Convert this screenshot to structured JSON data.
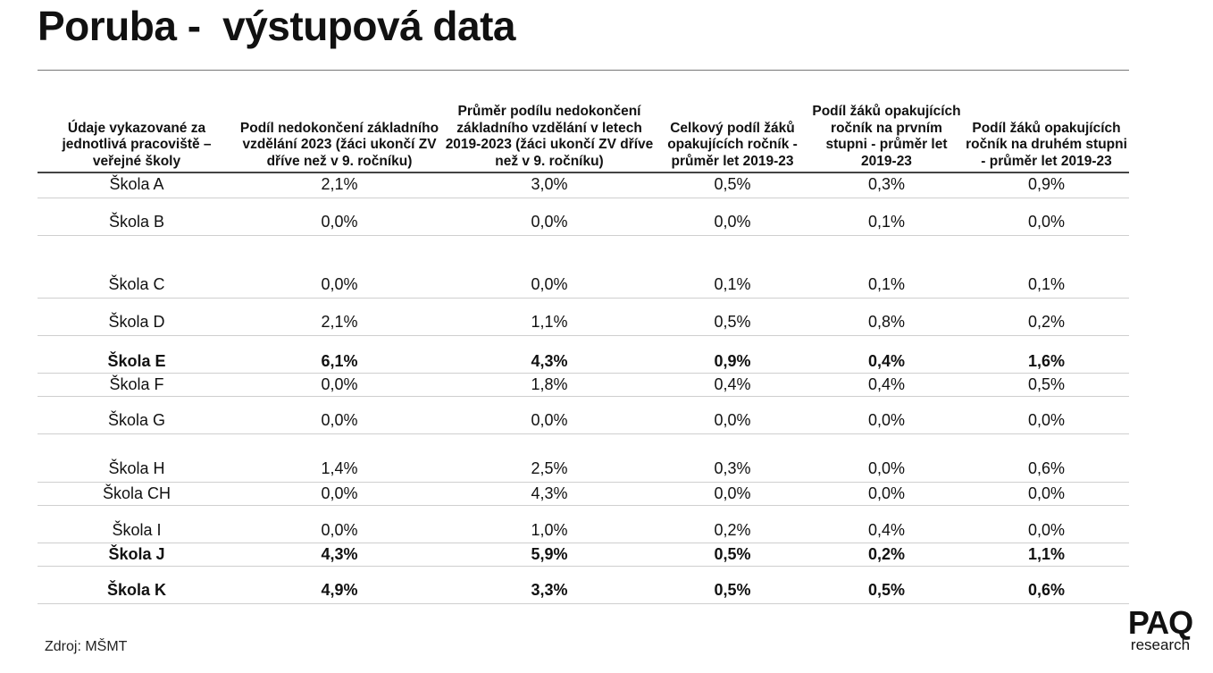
{
  "page": {
    "title": "Poruba -  výstupová data",
    "source": "Zdroj: MŠMT"
  },
  "logo": {
    "main": "PAQ",
    "sub": "research"
  },
  "table": {
    "headers": [
      "Údaje vykazované za jednotlivá pracoviště – veřejné školy",
      "Podíl nedokončení základního vzdělání 2023 (žáci ukončí ZV dříve než v 9. ročníku)",
      "Průměr podílu nedokončení základního vzdělání v letech 2019-2023 (žáci ukončí ZV dříve než v 9. ročníku)",
      "Celkový podíl žáků opakujících ročník - průměr let 2019-23",
      "Podíl žáků opakujících ročník na prvním stupni - průměr let 2019-23",
      "Podíl žáků opakujících ročník na druhém stupni - průměr let 2019-23"
    ],
    "rows": [
      {
        "cells": [
          "Škola A",
          "2,1%",
          "3,0%",
          "0,5%",
          "0,3%",
          "0,9%"
        ]
      },
      {
        "cells": [
          "Škola B",
          "0,0%",
          "0,0%",
          "0,0%",
          "0,1%",
          "0,0%"
        ]
      },
      {
        "cells": [
          "Škola C",
          "0,0%",
          "0,0%",
          "0,1%",
          "0,1%",
          "0,1%"
        ]
      },
      {
        "cells": [
          "Škola D",
          "2,1%",
          "1,1%",
          "0,5%",
          "0,8%",
          "0,2%"
        ]
      },
      {
        "cells": [
          "Škola E",
          "6,1%",
          "4,3%",
          "0,9%",
          "0,4%",
          "1,6%"
        ]
      },
      {
        "cells": [
          "Škola F",
          "0,0%",
          "1,8%",
          "0,4%",
          "0,4%",
          "0,5%"
        ]
      },
      {
        "cells": [
          "Škola G",
          "0,0%",
          "0,0%",
          "0,0%",
          "0,0%",
          "0,0%"
        ]
      },
      {
        "cells": [
          "Škola H",
          "1,4%",
          "2,5%",
          "0,3%",
          "0,0%",
          "0,6%"
        ]
      },
      {
        "cells": [
          "Škola CH",
          "0,0%",
          "4,3%",
          "0,0%",
          "0,0%",
          "0,0%"
        ]
      },
      {
        "cells": [
          "Škola I",
          "0,0%",
          "1,0%",
          "0,2%",
          "0,4%",
          "0,0%"
        ]
      },
      {
        "cells": [
          "Škola J",
          "4,3%",
          "5,9%",
          "0,5%",
          "0,2%",
          "1,1%"
        ]
      },
      {
        "cells": [
          "Škola K",
          "4,9%",
          "3,3%",
          "0,5%",
          "0,5%",
          "0,6%"
        ]
      }
    ]
  }
}
